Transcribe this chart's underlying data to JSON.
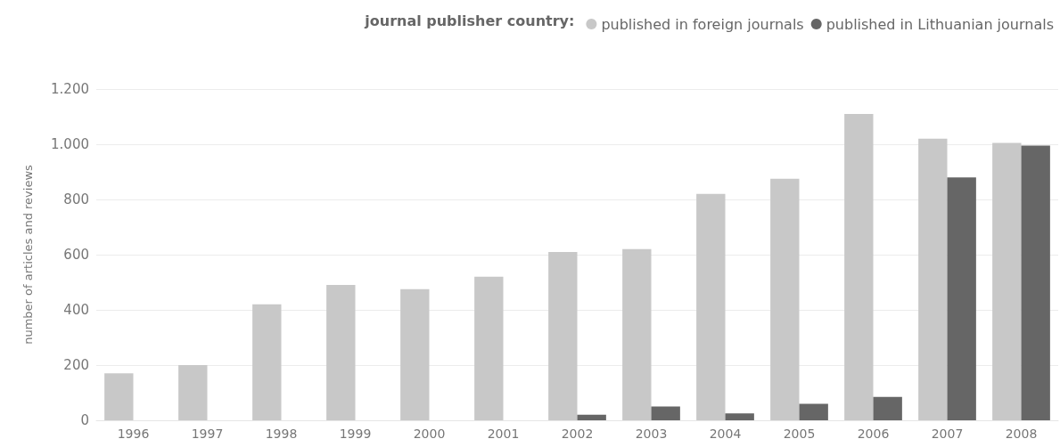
{
  "chart_data": {
    "type": "bar",
    "ylabel": "number of articles and reviews",
    "legend_title": "journal publisher country:",
    "categories": [
      "1996",
      "1997",
      "1998",
      "1999",
      "2000",
      "2001",
      "2002",
      "2003",
      "2004",
      "2005",
      "2006",
      "2007",
      "2008"
    ],
    "series": [
      {
        "name": "published in foreign journals",
        "color": "#c8c8c8",
        "values": [
          170,
          200,
          420,
          490,
          475,
          520,
          610,
          620,
          820,
          875,
          1110,
          1020,
          1005
        ]
      },
      {
        "name": "published in Lithuanian journals",
        "color": "#666666",
        "values": [
          null,
          null,
          null,
          null,
          null,
          null,
          20,
          50,
          25,
          60,
          85,
          880,
          995
        ]
      }
    ],
    "ylim": [
      0,
      1200
    ],
    "yticks": [
      0,
      200,
      400,
      600,
      800,
      {
        "value": 1000,
        "label": "1.000"
      },
      {
        "value": 1200,
        "label": "1.200"
      }
    ],
    "grid": "y",
    "legend": "top right"
  }
}
